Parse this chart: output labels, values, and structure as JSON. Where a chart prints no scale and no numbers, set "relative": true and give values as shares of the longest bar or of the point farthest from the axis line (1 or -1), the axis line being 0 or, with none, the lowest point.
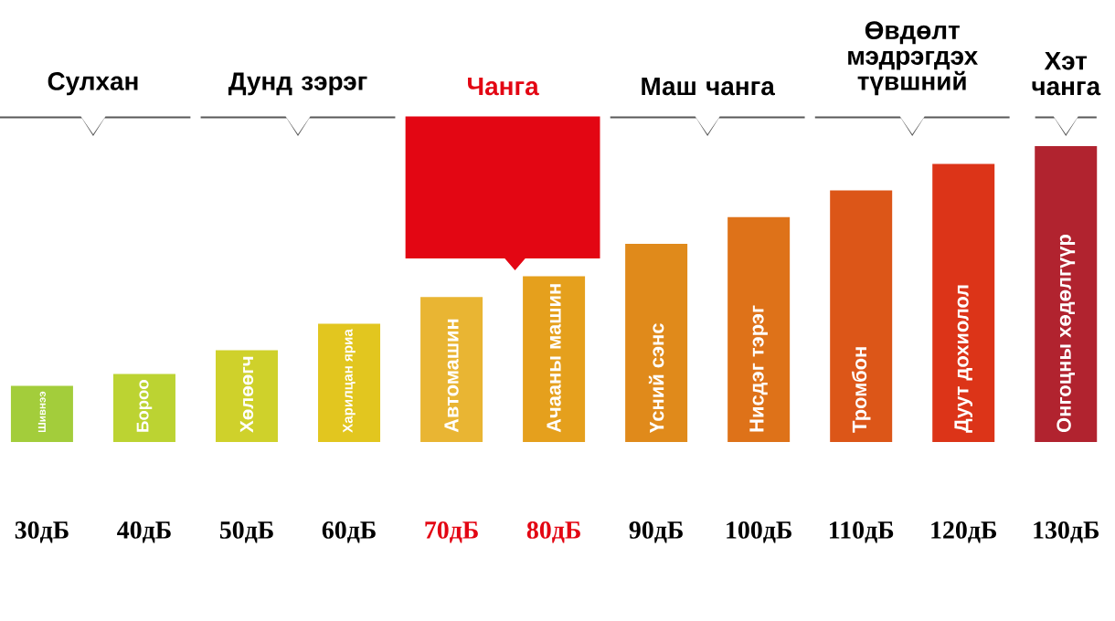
{
  "chart_data": {
    "type": "bar",
    "relative": true,
    "categories": [
      "30дБ",
      "40дБ",
      "50дБ",
      "60дБ",
      "70дБ",
      "80дБ",
      "90дБ",
      "100дБ",
      "110дБ",
      "120дБ",
      "130дБ"
    ],
    "values": [
      0.19,
      0.23,
      0.31,
      0.4,
      0.49,
      0.56,
      0.67,
      0.76,
      0.85,
      0.94,
      1
    ],
    "colors": [
      "#a3cd3b",
      "#bcd332",
      "#cfd12b",
      "#e2c61f",
      "#e9b533",
      "#e5a01d",
      "#e08a1b",
      "#de7219",
      "#dc5618",
      "#dc3418",
      "#b1232f"
    ],
    "annotations": [
      "Сулхан",
      "Дунд зэрэг",
      "Чанга",
      "Маш чанга",
      "Өвдөлт мэдрэгдэх түвшний",
      "Хэт чанга",
      "Шивнээ",
      "Бороо",
      "Хөлөөгч",
      "Харилцан яриа",
      "Автомашин",
      "Ачааны машин",
      "Үсний сэнс",
      "Нисдэг тэрэг",
      "Тромбон",
      "Дуут дохиолол",
      "Онгоцны хөдөлгүүр"
    ]
  }
}
